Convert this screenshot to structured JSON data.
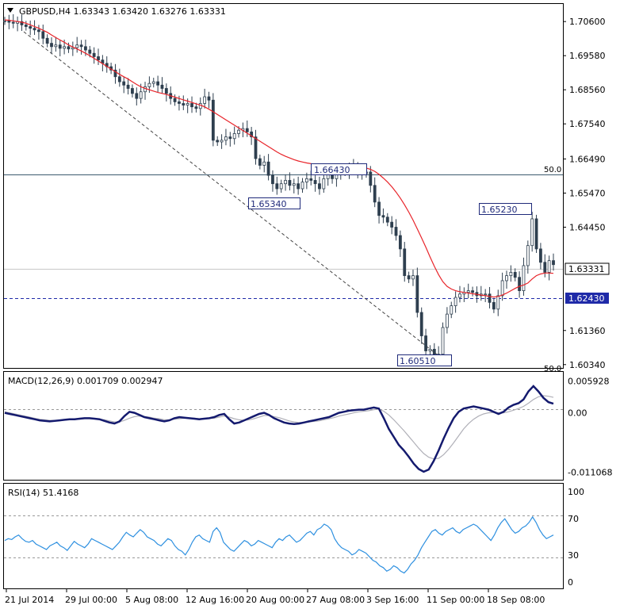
{
  "chart_data": [
    {
      "type": "candlestick",
      "header": "GBPUSD,H4  1.63343 1.63420 1.63276 1.63331",
      "y_ticks": [
        "1.70600",
        "1.69580",
        "1.68560",
        "1.67540",
        "1.66490",
        "1.65470",
        "1.64450",
        "1.63331",
        "1.62430",
        "1.61360",
        "1.60340"
      ],
      "y_tick_values": [
        1.706,
        1.6958,
        1.6856,
        1.6754,
        1.6649,
        1.6547,
        1.6445,
        1.63331,
        1.6243,
        1.6136,
        1.6034
      ],
      "ylim": [
        1.6024,
        1.7115
      ],
      "x_ticks": [
        "21 Jul 2014",
        "29 Jul 00:00",
        "5 Aug 08:00",
        "12 Aug 16:00",
        "20 Aug 00:00",
        "27 Aug 08:00",
        "3 Sep 16:00",
        "11 Sep 00:00",
        "18 Sep 08:00"
      ],
      "current_price": "1.63331",
      "support_level": "1.62430",
      "support_value": 1.6243,
      "fib_level_label": "50.0",
      "fib_level_value": 1.6628,
      "fib_bottom_label": "50.0",
      "annotations": [
        {
          "text": "1.66430",
          "value": 1.6643
        },
        {
          "text": "1.65340",
          "value": 1.6534
        },
        {
          "text": "1.65230",
          "value": 1.6523
        },
        {
          "text": "1.60510",
          "value": 1.6051
        }
      ],
      "close_series": [
        1.7062,
        1.7058,
        1.7055,
        1.706,
        1.705,
        1.7045,
        1.704,
        1.7035,
        1.703,
        1.701,
        1.6995,
        1.6985,
        1.699,
        1.698,
        1.6985,
        1.6978,
        1.6982,
        1.699,
        1.6985,
        1.6975,
        1.6965,
        1.6955,
        1.6945,
        1.6935,
        1.6925,
        1.6915,
        1.6895,
        1.688,
        1.687,
        1.686,
        1.6845,
        1.683,
        1.685,
        1.6865,
        1.6875,
        1.688,
        1.687,
        1.686,
        1.6845,
        1.683,
        1.682,
        1.6815,
        1.681,
        1.6815,
        1.6805,
        1.68,
        1.6815,
        1.6835,
        1.6825,
        1.6705,
        1.67,
        1.6705,
        1.6715,
        1.671,
        1.6725,
        1.6735,
        1.674,
        1.673,
        1.6715,
        1.665,
        1.663,
        1.664,
        1.66,
        1.6575,
        1.656,
        1.6575,
        1.6585,
        1.657,
        1.6575,
        1.656,
        1.658,
        1.659,
        1.6585,
        1.6575,
        1.656,
        1.659,
        1.6605,
        1.659,
        1.6605,
        1.6615,
        1.661,
        1.662,
        1.6625,
        1.6615,
        1.6605,
        1.661,
        1.657,
        1.652,
        1.648,
        1.6475,
        1.646,
        1.6445,
        1.642,
        1.638,
        1.63,
        1.629,
        1.63,
        1.619,
        1.612,
        1.6075,
        1.608,
        1.6055,
        1.6065,
        1.6145,
        1.6185,
        1.621,
        1.6235,
        1.6245,
        1.625,
        1.6255,
        1.625,
        1.624,
        1.6245,
        1.6245,
        1.622,
        1.62,
        1.624,
        1.6285,
        1.63,
        1.631,
        1.6295,
        1.6255,
        1.633,
        1.639,
        1.647,
        1.638,
        1.634,
        1.631,
        1.6345,
        1.6333
      ],
      "ma_series": [
        1.7065,
        1.7064,
        1.7062,
        1.706,
        1.7058,
        1.7055,
        1.705,
        1.7045,
        1.704,
        1.7034,
        1.7028,
        1.702,
        1.7012,
        1.7005,
        1.6998,
        1.699,
        1.6984,
        1.6978,
        1.6972,
        1.6965,
        1.6958,
        1.695,
        1.6942,
        1.6934,
        1.6926,
        1.6918,
        1.691,
        1.6902,
        1.6895,
        1.6888,
        1.688,
        1.6872,
        1.6865,
        1.686,
        1.6856,
        1.6852,
        1.6848,
        1.6845,
        1.6842,
        1.6838,
        1.6834,
        1.683,
        1.6826,
        1.6822,
        1.6818,
        1.6814,
        1.681,
        1.6805,
        1.6798,
        1.679,
        1.6782,
        1.6774,
        1.6766,
        1.6758,
        1.675,
        1.6742,
        1.6734,
        1.6726,
        1.6718,
        1.671,
        1.6702,
        1.6694,
        1.6686,
        1.6678,
        1.667,
        1.6663,
        1.6657,
        1.6652,
        1.6647,
        1.6643,
        1.664,
        1.6637,
        1.6635,
        1.6633,
        1.6631,
        1.663,
        1.6629,
        1.6628,
        1.6627,
        1.6627,
        1.6626,
        1.6626,
        1.6626,
        1.6625,
        1.6624,
        1.6622,
        1.6618,
        1.6612,
        1.6603,
        1.6592,
        1.658,
        1.6566,
        1.655,
        1.6532,
        1.6512,
        1.649,
        1.6466,
        1.644,
        1.6413,
        1.6385,
        1.6356,
        1.6328,
        1.6303,
        1.6282,
        1.6268,
        1.626,
        1.6255,
        1.6252,
        1.625,
        1.6248,
        1.6246,
        1.6244,
        1.6242,
        1.624,
        1.6238,
        1.6236,
        1.6238,
        1.6242,
        1.6248,
        1.6255,
        1.6262,
        1.6268,
        1.6272,
        1.6278,
        1.629,
        1.63,
        1.6305,
        1.6308,
        1.6308,
        1.6307
      ]
    },
    {
      "type": "line",
      "header": "MACD(12,26,9) 0.001709 0.002947",
      "y_ticks": [
        "0.005928",
        "0.00",
        "-0.011068"
      ],
      "y_tick_values": [
        0.005928,
        0.0,
        -0.011068
      ],
      "ylim": [
        -0.0125,
        0.0075
      ],
      "macd": [
        0.0,
        -0.0002,
        -0.0004,
        -0.0006,
        -0.0008,
        -0.001,
        -0.0012,
        -0.0014,
        -0.0015,
        -0.0016,
        -0.0015,
        -0.0014,
        -0.0013,
        -0.0012,
        -0.0012,
        -0.0011,
        -0.001,
        -0.001,
        -0.0011,
        -0.0012,
        -0.0015,
        -0.0018,
        -0.002,
        -0.0016,
        -0.0006,
        0.0002,
        0.0,
        -0.0004,
        -0.0008,
        -0.001,
        -0.0012,
        -0.0014,
        -0.0016,
        -0.0014,
        -0.001,
        -0.0008,
        -0.0009,
        -0.001,
        -0.0011,
        -0.0012,
        -0.0011,
        -0.001,
        -0.0008,
        -0.0004,
        -0.0002,
        -0.0012,
        -0.002,
        -0.0018,
        -0.0014,
        -0.001,
        -0.0006,
        -0.0002,
        0.0,
        -0.0004,
        -0.001,
        -0.0014,
        -0.0018,
        -0.002,
        -0.0021,
        -0.002,
        -0.0018,
        -0.0016,
        -0.0014,
        -0.0012,
        -0.001,
        -0.0008,
        -0.0004,
        0.0,
        0.0002,
        0.0004,
        0.0005,
        0.0006,
        0.0006,
        0.0008,
        0.001,
        0.0008,
        -0.001,
        -0.003,
        -0.0045,
        -0.006,
        -0.007,
        -0.0082,
        -0.0095,
        -0.0105,
        -0.011,
        -0.0106,
        -0.009,
        -0.007,
        -0.0048,
        -0.0028,
        -0.001,
        0.0002,
        0.0008,
        0.001,
        0.0012,
        0.001,
        0.0008,
        0.0006,
        0.0002,
        -0.0002,
        0.0002,
        0.001,
        0.0015,
        0.0018,
        0.0025,
        0.004,
        0.005,
        0.004,
        0.0028,
        0.002,
        0.0017
      ],
      "signal": [
        0.0002,
        0.0,
        -0.0002,
        -0.0004,
        -0.0006,
        -0.0008,
        -0.001,
        -0.0012,
        -0.0013,
        -0.0014,
        -0.0014,
        -0.0014,
        -0.0013,
        -0.0013,
        -0.0012,
        -0.0012,
        -0.0011,
        -0.0011,
        -0.0011,
        -0.0012,
        -0.0013,
        -0.0015,
        -0.0017,
        -0.0017,
        -0.0014,
        -0.001,
        -0.0007,
        -0.0006,
        -0.0007,
        -0.0008,
        -0.001,
        -0.0011,
        -0.0013,
        -0.0013,
        -0.0012,
        -0.0011,
        -0.001,
        -0.001,
        -0.001,
        -0.0011,
        -0.0011,
        -0.001,
        -0.001,
        -0.0008,
        -0.0006,
        -0.0008,
        -0.0011,
        -0.0013,
        -0.0014,
        -0.0013,
        -0.0011,
        -0.0008,
        -0.0005,
        -0.0005,
        -0.0007,
        -0.0009,
        -0.0012,
        -0.0015,
        -0.0017,
        -0.0018,
        -0.0018,
        -0.0017,
        -0.0016,
        -0.0015,
        -0.0013,
        -0.0011,
        -0.0009,
        -0.0006,
        -0.0004,
        -0.0002,
        0.0,
        0.0002,
        0.0003,
        0.0004,
        0.0006,
        0.0007,
        0.0003,
        -0.0004,
        -0.0013,
        -0.0023,
        -0.0033,
        -0.0044,
        -0.0055,
        -0.0066,
        -0.0076,
        -0.0083,
        -0.0086,
        -0.0085,
        -0.0078,
        -0.0068,
        -0.0056,
        -0.0043,
        -0.003,
        -0.002,
        -0.0012,
        -0.0006,
        -0.0002,
        0.0,
        0.0001,
        0.0,
        0.0,
        0.0002,
        0.0005,
        0.0008,
        0.0012,
        0.0018,
        0.0025,
        0.003,
        0.0032,
        0.0031,
        0.0029
      ]
    },
    {
      "type": "line",
      "header": "RSI(14) 51.4168",
      "y_ticks": [
        "100",
        "70",
        "30",
        "0"
      ],
      "y_tick_values": [
        100,
        70,
        30,
        0
      ],
      "ylim": [
        0,
        100
      ],
      "rsi": [
        46,
        48,
        47,
        50,
        52,
        48,
        45,
        44,
        46,
        42,
        40,
        38,
        36,
        40,
        42,
        44,
        40,
        38,
        35,
        40,
        45,
        42,
        40,
        38,
        42,
        48,
        46,
        44,
        42,
        40,
        38,
        36,
        40,
        44,
        50,
        55,
        52,
        50,
        54,
        58,
        55,
        50,
        48,
        46,
        42,
        40,
        44,
        48,
        46,
        40,
        36,
        34,
        30,
        36,
        44,
        50,
        52,
        48,
        46,
        44,
        56,
        60,
        55,
        44,
        40,
        36,
        34,
        38,
        42,
        46,
        44,
        40,
        42,
        46,
        44,
        42,
        40,
        38,
        44,
        48,
        46,
        50,
        52,
        48,
        44,
        46,
        50,
        54,
        56,
        52,
        58,
        60,
        64,
        62,
        58,
        48,
        42,
        38,
        36,
        34,
        30,
        32,
        36,
        34,
        32,
        28,
        24,
        22,
        18,
        16,
        12,
        14,
        18,
        16,
        12,
        10,
        14,
        20,
        24,
        30,
        38,
        44,
        50,
        56,
        58,
        54,
        52,
        56,
        58,
        60,
        56,
        54,
        58,
        60,
        62,
        64,
        62,
        58,
        54,
        50,
        46,
        52,
        60,
        66,
        70,
        64,
        58,
        54,
        56,
        60,
        62,
        66,
        72,
        66,
        58,
        52,
        48,
        50,
        52
      ]
    }
  ]
}
